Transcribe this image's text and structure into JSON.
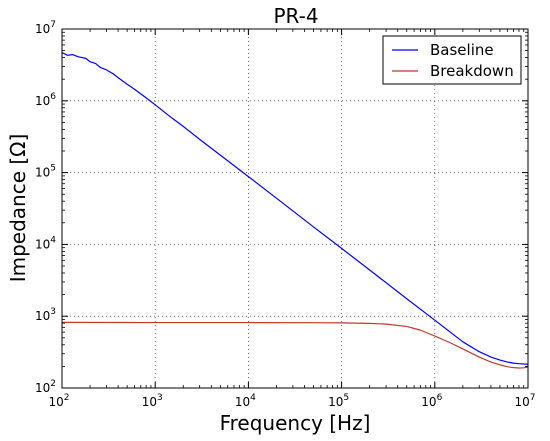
{
  "chart_data": {
    "type": "line",
    "title": "PR-4",
    "xlabel": "Frequency [Hz]",
    "ylabel": "Impedance [Ω]",
    "xscale": "log",
    "yscale": "log",
    "xlim": [
      100,
      10000000
    ],
    "ylim": [
      100,
      10000000
    ],
    "grid": true,
    "legend_position": "top-right",
    "x_ticks": [
      {
        "value": 100,
        "base": "10",
        "exp": "2"
      },
      {
        "value": 1000,
        "base": "10",
        "exp": "3"
      },
      {
        "value": 10000,
        "base": "10",
        "exp": "4"
      },
      {
        "value": 100000,
        "base": "10",
        "exp": "5"
      },
      {
        "value": 1000000,
        "base": "10",
        "exp": "6"
      },
      {
        "value": 10000000,
        "base": "10",
        "exp": "7"
      }
    ],
    "y_ticks": [
      {
        "value": 100,
        "base": "10",
        "exp": "2"
      },
      {
        "value": 1000,
        "base": "10",
        "exp": "3"
      },
      {
        "value": 10000,
        "base": "10",
        "exp": "4"
      },
      {
        "value": 100000,
        "base": "10",
        "exp": "5"
      },
      {
        "value": 1000000,
        "base": "10",
        "exp": "6"
      },
      {
        "value": 10000000,
        "base": "10",
        "exp": "7"
      }
    ],
    "series": [
      {
        "name": "Baseline",
        "color": "#0000ff",
        "x": [
          100,
          115,
          130,
          150,
          180,
          200,
          230,
          260,
          300,
          350,
          400,
          500,
          600,
          700,
          800,
          1000,
          1500,
          2000,
          3000,
          5000,
          10000,
          20000,
          50000,
          100000,
          200000,
          500000,
          1000000,
          2000000,
          3000000,
          4000000,
          5000000,
          6000000,
          7000000,
          8000000,
          9000000,
          10000000
        ],
        "y": [
          4700000,
          4300000,
          4400000,
          4100000,
          3900000,
          3500000,
          3300000,
          2900000,
          2700000,
          2400000,
          2100000,
          1700000,
          1450000,
          1250000,
          1100000,
          880000,
          580000,
          440000,
          290000,
          175000,
          88000,
          44000,
          17500,
          8800,
          4400,
          1750,
          880,
          440,
          320,
          270,
          245,
          230,
          222,
          218,
          216,
          215
        ]
      },
      {
        "name": "Breakdown",
        "color": "#c0392b",
        "x": [
          100,
          1000,
          10000,
          50000,
          100000,
          200000,
          300000,
          500000,
          700000,
          1000000,
          1500000,
          2000000,
          3000000,
          4000000,
          5000000,
          6000000,
          7000000,
          8000000,
          9000000,
          10000000
        ],
        "y": [
          820,
          815,
          815,
          812,
          808,
          795,
          775,
          720,
          640,
          530,
          420,
          350,
          270,
          230,
          210,
          198,
          192,
          190,
          191,
          196
        ]
      }
    ]
  }
}
